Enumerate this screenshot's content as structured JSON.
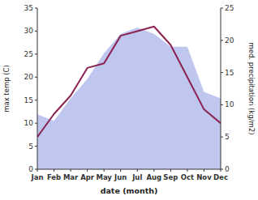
{
  "chart_data": {
    "type": "line",
    "xlabel": "date (month)",
    "ylabel": "max temp (C)",
    "y2label": "med. precipitation (kg/m2)",
    "categories": [
      "Jan",
      "Feb",
      "Mar",
      "Apr",
      "May",
      "Jun",
      "Jul",
      "Aug",
      "Sep",
      "Oct",
      "Nov",
      "Dec"
    ],
    "series": [
      {
        "type": "area",
        "axis": "y2",
        "color": "#aab4e8",
        "values": [
          8.5,
          7.5,
          11,
          14,
          18,
          21,
          22,
          21,
          19,
          19,
          12,
          11
        ]
      },
      {
        "type": "line",
        "color": "#8B2252",
        "values": [
          7,
          12,
          16,
          22,
          23,
          29,
          30,
          31,
          27,
          20,
          13,
          10
        ]
      }
    ],
    "ylim": [
      0,
      35
    ],
    "yticks": [
      0,
      5,
      10,
      15,
      20,
      25,
      30,
      35
    ],
    "y2lim": [
      0,
      25
    ],
    "y2ticks": [
      0,
      5,
      10,
      15,
      20,
      25
    ],
    "grid": false
  }
}
